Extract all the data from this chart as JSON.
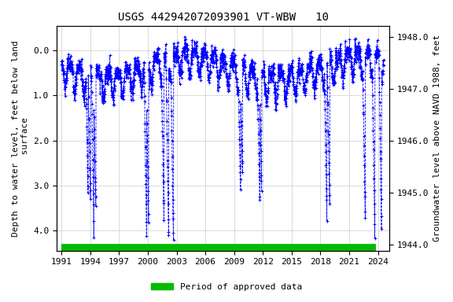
{
  "title": "USGS 442942072093901 VT-WBW   10",
  "ylabel_left": "Depth to water level, feet below land\n surface",
  "ylabel_right": "Groundwater level above NAVD 1988, feet",
  "ylim_left": [
    4.45,
    -0.55
  ],
  "ylim_right": [
    1943.88,
    1948.22
  ],
  "xlim": [
    1990.5,
    2025.2
  ],
  "yticks_left": [
    0.0,
    1.0,
    2.0,
    3.0,
    4.0
  ],
  "yticks_right": [
    1944.0,
    1945.0,
    1946.0,
    1947.0,
    1948.0
  ],
  "xticks": [
    1991,
    1994,
    1997,
    2000,
    2003,
    2006,
    2009,
    2012,
    2015,
    2018,
    2021,
    2024
  ],
  "line_color": "#0000ff",
  "marker": "+",
  "linestyle": "--",
  "green_bar_color": "#00bb00",
  "legend_label": "Period of approved data",
  "title_fontsize": 10,
  "axis_fontsize": 8,
  "tick_fontsize": 8,
  "background_color": "#ffffff",
  "grid_color": "#cccccc"
}
